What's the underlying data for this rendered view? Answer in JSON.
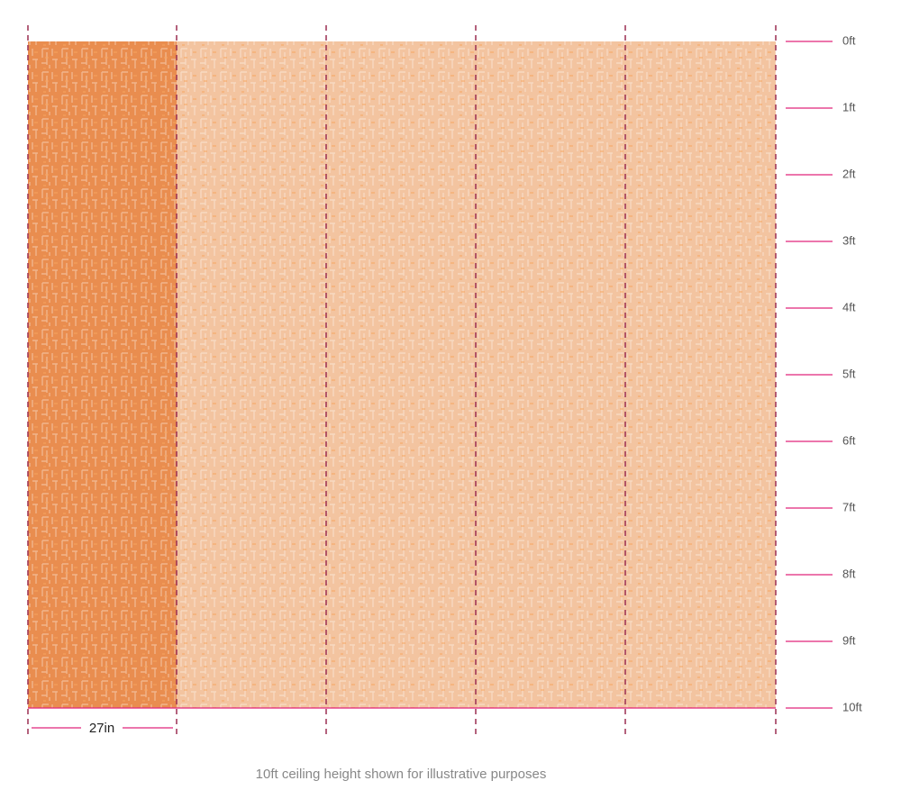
{
  "height_scale": {
    "labels": [
      "0ft",
      "1ft",
      "2ft",
      "3ft",
      "4ft",
      "5ft",
      "6ft",
      "7ft",
      "8ft",
      "9ft",
      "10ft"
    ]
  },
  "panel_width_label": "27in",
  "caption": "10ft ceiling height shown for illustrative purposes"
}
